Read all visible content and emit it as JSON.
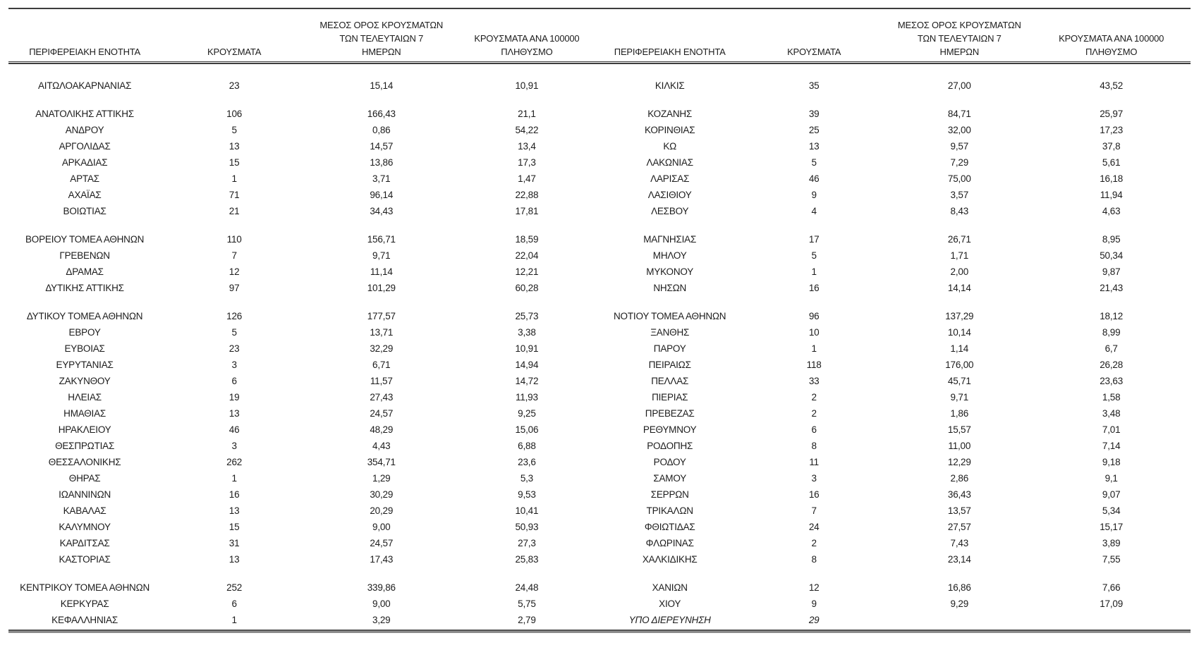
{
  "page": {
    "background": "#ffffff",
    "text_color": "#1c1c1c",
    "rule_dark": "#3d3d3d",
    "rule_gray": "#8c8c8c"
  },
  "table": {
    "headers": {
      "region": "ΠΕΡΙΦΕΡΕΙΑΚΗ ΕΝΟΤΗΤΑ",
      "cases": "ΚΡΟΥΣΜΑΤΑ",
      "avg7_lines": [
        "ΜΕΣΟΣ ΟΡΟΣ ΚΡΟΥΣΜΑΤΩΝ",
        "ΤΩΝ ΤΕΛΕΥΤΑΙΩΝ 7",
        "ΗΜΕΡΩΝ"
      ],
      "per100k_lines": [
        "ΚΡΟΥΣΜΑΤΑ ΑΝΑ 100000",
        "ΠΛΗΘΥΣΜΟ"
      ]
    },
    "group_breaks": [
      1,
      8,
      12,
      28
    ],
    "left_rows": [
      [
        "ΑΙΤΩΛΟΑΚΑΡΝΑΝΙΑΣ",
        "23",
        "15,14",
        "10,91"
      ],
      [
        "ΑΝΑΤΟΛΙΚΗΣ ΑΤΤΙΚΗΣ",
        "106",
        "166,43",
        "21,1"
      ],
      [
        "ΑΝΔΡΟΥ",
        "5",
        "0,86",
        "54,22"
      ],
      [
        "ΑΡΓΟΛΙΔΑΣ",
        "13",
        "14,57",
        "13,4"
      ],
      [
        "ΑΡΚΑΔΙΑΣ",
        "15",
        "13,86",
        "17,3"
      ],
      [
        "ΑΡΤΑΣ",
        "1",
        "3,71",
        "1,47"
      ],
      [
        "ΑΧΑΪΑΣ",
        "71",
        "96,14",
        "22,88"
      ],
      [
        "ΒΟΙΩΤΙΑΣ",
        "21",
        "34,43",
        "17,81"
      ],
      [
        "ΒΟΡΕΙΟΥ ΤΟΜΕΑ ΑΘΗΝΩΝ",
        "110",
        "156,71",
        "18,59"
      ],
      [
        "ΓΡΕΒΕΝΩΝ",
        "7",
        "9,71",
        "22,04"
      ],
      [
        "ΔΡΑΜΑΣ",
        "12",
        "11,14",
        "12,21"
      ],
      [
        "ΔΥΤΙΚΗΣ ΑΤΤΙΚΗΣ",
        "97",
        "101,29",
        "60,28"
      ],
      [
        "ΔΥΤΙΚΟΥ ΤΟΜΕΑ ΑΘΗΝΩΝ",
        "126",
        "177,57",
        "25,73"
      ],
      [
        "ΕΒΡΟΥ",
        "5",
        "13,71",
        "3,38"
      ],
      [
        "ΕΥΒΟΙΑΣ",
        "23",
        "32,29",
        "10,91"
      ],
      [
        "ΕΥΡΥΤΑΝΙΑΣ",
        "3",
        "6,71",
        "14,94"
      ],
      [
        "ΖΑΚΥΝΘΟΥ",
        "6",
        "11,57",
        "14,72"
      ],
      [
        "ΗΛΕΙΑΣ",
        "19",
        "27,43",
        "11,93"
      ],
      [
        "ΗΜΑΘΙΑΣ",
        "13",
        "24,57",
        "9,25"
      ],
      [
        "ΗΡΑΚΛΕΙΟΥ",
        "46",
        "48,29",
        "15,06"
      ],
      [
        "ΘΕΣΠΡΩΤΙΑΣ",
        "3",
        "4,43",
        "6,88"
      ],
      [
        "ΘΕΣΣΑΛΟΝΙΚΗΣ",
        "262",
        "354,71",
        "23,6"
      ],
      [
        "ΘΗΡΑΣ",
        "1",
        "1,29",
        "5,3"
      ],
      [
        "ΙΩΑΝΝΙΝΩΝ",
        "16",
        "30,29",
        "9,53"
      ],
      [
        "ΚΑΒΑΛΑΣ",
        "13",
        "20,29",
        "10,41"
      ],
      [
        "ΚΑΛΥΜΝΟΥ",
        "15",
        "9,00",
        "50,93"
      ],
      [
        "ΚΑΡΔΙΤΣΑΣ",
        "31",
        "24,57",
        "27,3"
      ],
      [
        "ΚΑΣΤΟΡΙΑΣ",
        "13",
        "17,43",
        "25,83"
      ],
      [
        "ΚΕΝΤΡΙΚΟΥ ΤΟΜΕΑ ΑΘΗΝΩΝ",
        "252",
        "339,86",
        "24,48"
      ],
      [
        "ΚΕΡΚΥΡΑΣ",
        "6",
        "9,00",
        "5,75"
      ],
      [
        "ΚΕΦΑΛΛΗΝΙΑΣ",
        "1",
        "3,29",
        "2,79"
      ]
    ],
    "right_rows": [
      [
        "ΚΙΛΚΙΣ",
        "35",
        "27,00",
        "43,52"
      ],
      [
        "ΚΟΖΑΝΗΣ",
        "39",
        "84,71",
        "25,97"
      ],
      [
        "ΚΟΡΙΝΘΙΑΣ",
        "25",
        "32,00",
        "17,23"
      ],
      [
        "ΚΩ",
        "13",
        "9,57",
        "37,8"
      ],
      [
        "ΛΑΚΩΝΙΑΣ",
        "5",
        "7,29",
        "5,61"
      ],
      [
        "ΛΑΡΙΣΑΣ",
        "46",
        "75,00",
        "16,18"
      ],
      [
        "ΛΑΣΙΘΙΟΥ",
        "9",
        "3,57",
        "11,94"
      ],
      [
        "ΛΕΣΒΟΥ",
        "4",
        "8,43",
        "4,63"
      ],
      [
        "ΜΑΓΝΗΣΙΑΣ",
        "17",
        "26,71",
        "8,95"
      ],
      [
        "ΜΗΛΟΥ",
        "5",
        "1,71",
        "50,34"
      ],
      [
        "ΜΥΚΟΝΟΥ",
        "1",
        "2,00",
        "9,87"
      ],
      [
        "ΝΗΣΩΝ",
        "16",
        "14,14",
        "21,43"
      ],
      [
        "ΝΟΤΙΟΥ ΤΟΜΕΑ ΑΘΗΝΩΝ",
        "96",
        "137,29",
        "18,12"
      ],
      [
        "ΞΑΝΘΗΣ",
        "10",
        "10,14",
        "8,99"
      ],
      [
        "ΠΑΡΟΥ",
        "1",
        "1,14",
        "6,7"
      ],
      [
        "ΠΕΙΡΑΙΩΣ",
        "118",
        "176,00",
        "26,28"
      ],
      [
        "ΠΕΛΛΑΣ",
        "33",
        "45,71",
        "23,63"
      ],
      [
        "ΠΙΕΡΙΑΣ",
        "2",
        "9,71",
        "1,58"
      ],
      [
        "ΠΡΕΒΕΖΑΣ",
        "2",
        "1,86",
        "3,48"
      ],
      [
        "ΡΕΘΥΜΝΟΥ",
        "6",
        "15,57",
        "7,01"
      ],
      [
        "ΡΟΔΟΠΗΣ",
        "8",
        "11,00",
        "7,14"
      ],
      [
        "ΡΟΔΟΥ",
        "11",
        "12,29",
        "9,18"
      ],
      [
        "ΣΑΜΟΥ",
        "3",
        "2,86",
        "9,1"
      ],
      [
        "ΣΕΡΡΩΝ",
        "16",
        "36,43",
        "9,07"
      ],
      [
        "ΤΡΙΚΑΛΩΝ",
        "7",
        "13,57",
        "5,34"
      ],
      [
        "ΦΘΙΩΤΙΔΑΣ",
        "24",
        "27,57",
        "15,17"
      ],
      [
        "ΦΛΩΡΙΝΑΣ",
        "2",
        "7,43",
        "3,89"
      ],
      [
        "ΧΑΛΚΙΔΙΚΗΣ",
        "8",
        "23,14",
        "7,55"
      ],
      [
        "ΧΑΝΙΩΝ",
        "12",
        "16,86",
        "7,66"
      ],
      [
        "ΧΙΟΥ",
        "9",
        "9,29",
        "17,09"
      ],
      [
        "ΥΠΟ ΔΙΕΡΕΥΝΗΣΗ",
        "29",
        "",
        "",
        "italic"
      ]
    ]
  }
}
